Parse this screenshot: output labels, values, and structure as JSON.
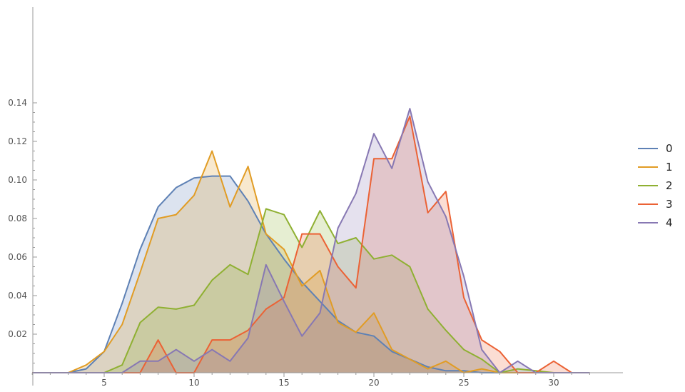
{
  "chart_data": {
    "type": "area",
    "x": [
      1,
      2,
      3,
      4,
      5,
      6,
      7,
      8,
      9,
      10,
      11,
      12,
      13,
      14,
      15,
      16,
      17,
      18,
      19,
      20,
      21,
      22,
      23,
      24,
      25,
      26,
      27,
      28,
      29,
      30,
      31,
      32
    ],
    "xlim": [
      0,
      33
    ],
    "ylim": [
      0,
      0.145
    ],
    "xticks": [
      5,
      10,
      15,
      20,
      25,
      30
    ],
    "yticks": [
      0.02,
      0.04,
      0.06,
      0.08,
      0.1,
      0.12,
      0.14
    ],
    "ytick_labels": [
      "0.02",
      "0.04",
      "0.06",
      "0.08",
      "0.10",
      "0.12",
      "0.14"
    ],
    "grid": false,
    "legend_position": "right",
    "series": [
      {
        "name": "0",
        "color": "#5e81b5",
        "values": [
          0,
          0,
          0,
          0.002,
          0.011,
          0.036,
          0.064,
          0.086,
          0.096,
          0.101,
          0.102,
          0.102,
          0.089,
          0.072,
          0.059,
          0.047,
          0.037,
          0.027,
          0.021,
          0.019,
          0.011,
          0.007,
          0.003,
          0.001,
          0.001,
          0,
          0,
          0,
          0,
          0,
          0,
          0
        ]
      },
      {
        "name": "1",
        "color": "#e19c24",
        "values": [
          0,
          0,
          0,
          0.004,
          0.011,
          0.025,
          0.052,
          0.08,
          0.082,
          0.092,
          0.115,
          0.086,
          0.107,
          0.072,
          0.064,
          0.045,
          0.053,
          0.026,
          0.021,
          0.031,
          0.012,
          0.007,
          0.002,
          0.006,
          0,
          0.002,
          0,
          0,
          0,
          0,
          0,
          0
        ]
      },
      {
        "name": "2",
        "color": "#8fb032",
        "values": [
          0,
          0,
          0,
          0,
          0,
          0.004,
          0.026,
          0.034,
          0.033,
          0.035,
          0.048,
          0.056,
          0.051,
          0.085,
          0.082,
          0.065,
          0.084,
          0.067,
          0.07,
          0.059,
          0.061,
          0.055,
          0.033,
          0.022,
          0.012,
          0.007,
          0,
          0.002,
          0.001,
          0,
          0,
          0
        ]
      },
      {
        "name": "3",
        "color": "#eb6235",
        "values": [
          0,
          0,
          0,
          0,
          0,
          0,
          0,
          0.017,
          0,
          0,
          0.017,
          0.017,
          0.022,
          0.033,
          0.039,
          0.072,
          0.072,
          0.055,
          0.044,
          0.111,
          0.111,
          0.133,
          0.083,
          0.094,
          0.039,
          0.017,
          0.011,
          0,
          0,
          0.006,
          0,
          0
        ]
      },
      {
        "name": "4",
        "color": "#8778b3",
        "values": [
          0,
          0,
          0,
          0,
          0,
          0,
          0.006,
          0.006,
          0.012,
          0.006,
          0.012,
          0.006,
          0.018,
          0.056,
          0.037,
          0.019,
          0.031,
          0.075,
          0.093,
          0.124,
          0.106,
          0.137,
          0.099,
          0.081,
          0.05,
          0.012,
          0,
          0.006,
          0,
          0,
          0,
          0
        ]
      }
    ]
  }
}
